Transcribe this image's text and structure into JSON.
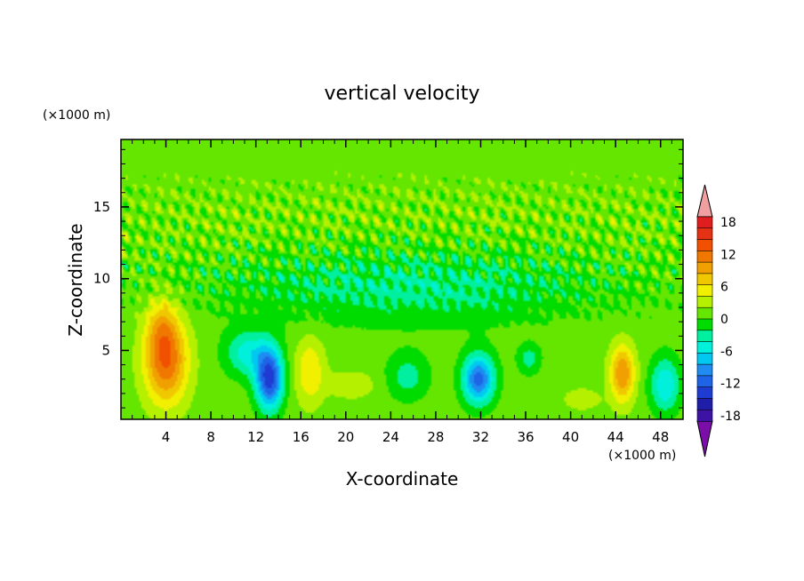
{
  "chart_data": {
    "type": "heatmap",
    "title": "vertical velocity",
    "xlabel": "X-coordinate",
    "ylabel": "Z-coordinate",
    "x_unit": "(×1000 m)",
    "y_unit": "(×1000 m)",
    "xlim": [
      0,
      50
    ],
    "ylim": [
      0.2,
      19.7
    ],
    "x_ticks": [
      4,
      8,
      12,
      16,
      20,
      24,
      28,
      32,
      36,
      40,
      44,
      48
    ],
    "x_tick_labels": [
      "4",
      "8",
      "12",
      "16",
      "20",
      "24",
      "28",
      "32",
      "36",
      "40",
      "44",
      "48"
    ],
    "y_ticks": [
      5,
      10,
      15
    ],
    "y_tick_labels": [
      "5",
      "10",
      "15"
    ],
    "colorbar": {
      "min": -21,
      "max": 21,
      "step": 2,
      "extend": "both",
      "tick_values": [
        18,
        12,
        6,
        0,
        -6,
        -12,
        -18
      ],
      "tick_labels": [
        "18",
        "12",
        "6",
        "0",
        "-6",
        "-12",
        "-18"
      ],
      "colors": [
        "#7b0ea8",
        "#3c13a3",
        "#1e1ea8",
        "#1e3cd2",
        "#1e64e6",
        "#1e8cf0",
        "#00c8f0",
        "#00f0dc",
        "#00f0a0",
        "#00dc00",
        "#64e600",
        "#b4f000",
        "#f0f000",
        "#f0c800",
        "#f0a000",
        "#f07800",
        "#f05000",
        "#e63214",
        "#e11e1e",
        "#f0a0a0"
      ]
    },
    "features": [
      {
        "x": 4,
        "z": 4.5,
        "peak": 11
      },
      {
        "x": 13.2,
        "z": 3.2,
        "peak": -14
      },
      {
        "x": 31.8,
        "z": 3.2,
        "peak": -12
      },
      {
        "x": 44.6,
        "z": 3.5,
        "peak": 9
      },
      {
        "x": 48.4,
        "z": 1.4,
        "peak": -10
      }
    ]
  }
}
